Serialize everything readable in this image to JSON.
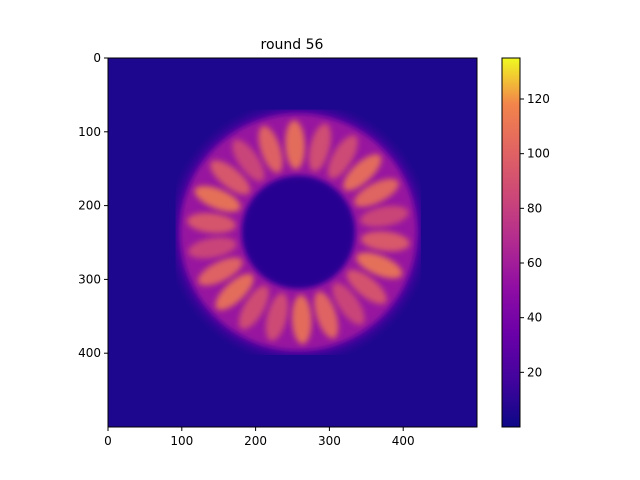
{
  "chart_data": {
    "type": "heatmap",
    "title": "round 56",
    "xlabel": "",
    "ylabel": "",
    "colormap": "plasma",
    "image_size": [
      500,
      500
    ],
    "xlim": [
      0,
      500
    ],
    "ylim": [
      500,
      0
    ],
    "x_ticks": [
      0,
      100,
      200,
      300,
      400
    ],
    "y_ticks": [
      0,
      100,
      200,
      300,
      400
    ],
    "colorbar": {
      "range": [
        0,
        135
      ],
      "ticks": [
        20,
        40,
        60,
        80,
        100,
        120
      ]
    },
    "structure": {
      "shape": "ring",
      "center": [
        258,
        236
      ],
      "inner_radius": 77,
      "outer_radius": 160,
      "lobe_count": 22,
      "background_value": 5,
      "ring_value": 55,
      "lobe_peak_value": 112
    }
  }
}
